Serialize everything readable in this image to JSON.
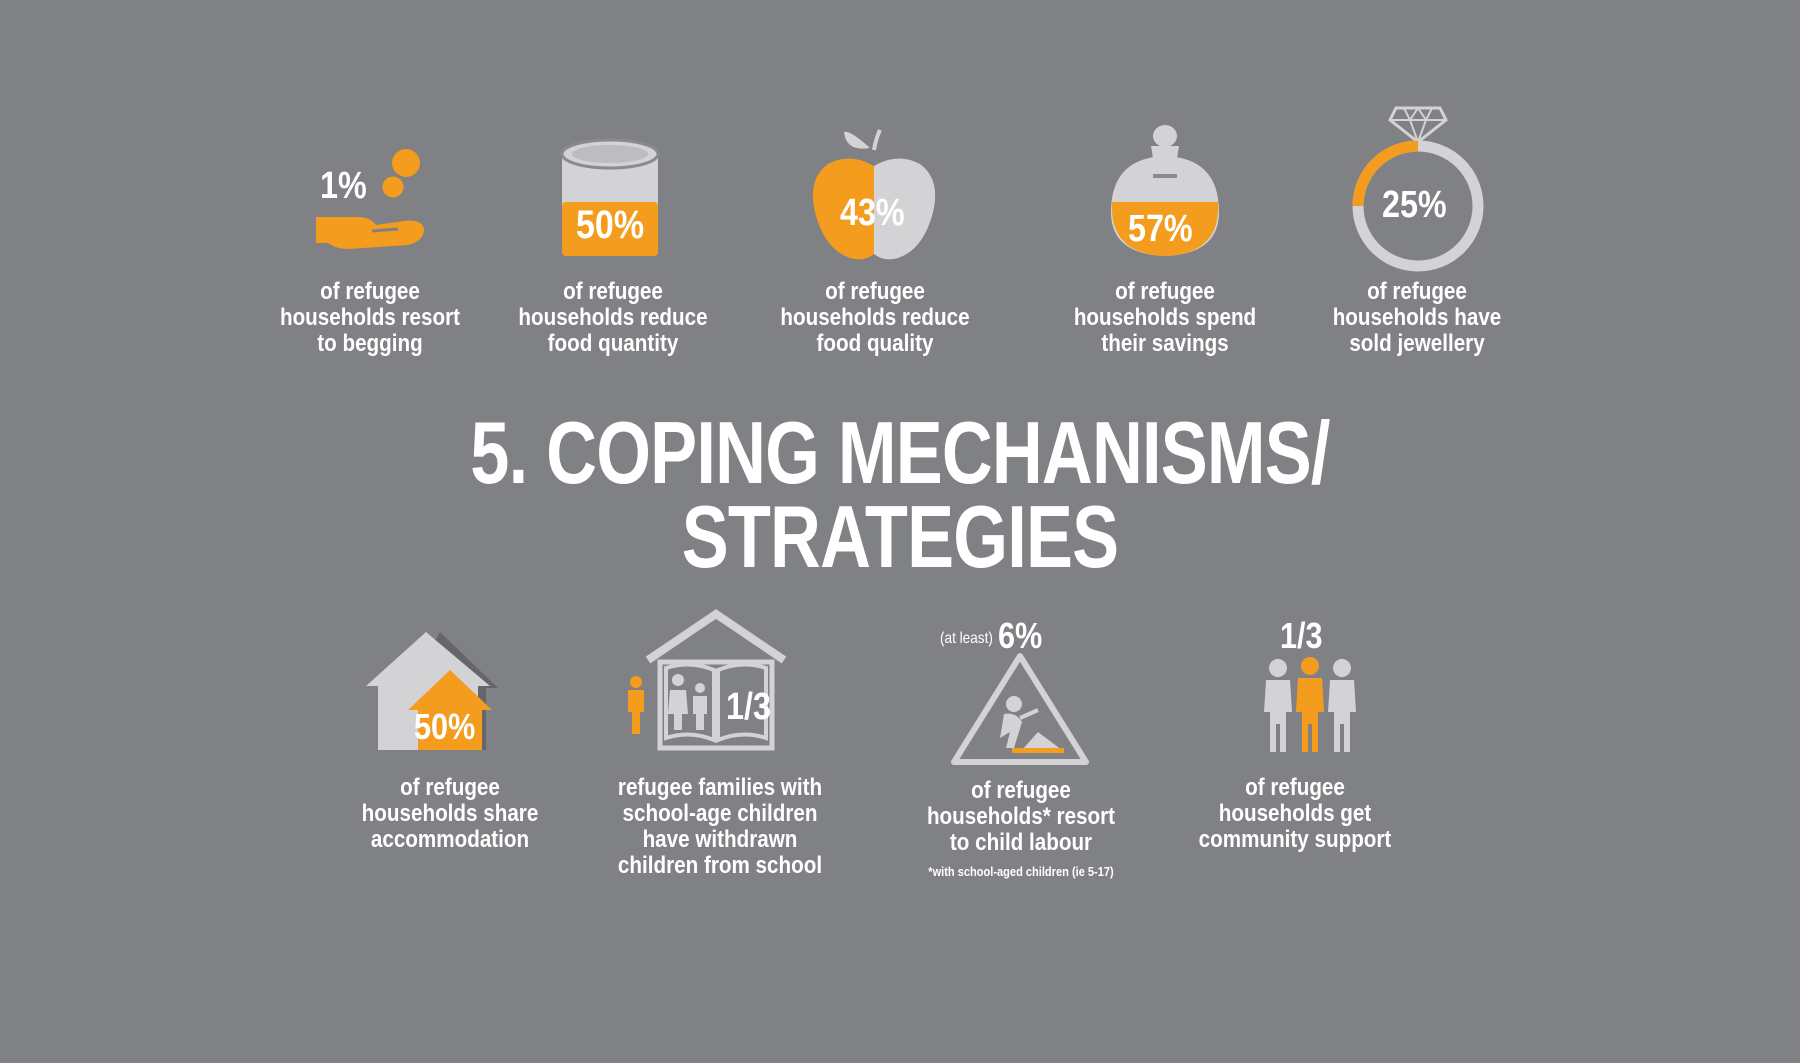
{
  "colors": {
    "background": "#808185",
    "accent": "#F39C1D",
    "light_grey": "#D3D3D5",
    "dark_grey": "#65666A",
    "text": "#FFFFFF"
  },
  "title": {
    "line1": "5. COPING MECHANISMS/",
    "line2": "STRATEGIES"
  },
  "top_items": [
    {
      "icon": "hand-coins-icon",
      "value": "1%",
      "lines": [
        "of refugee",
        "households resort",
        "to begging"
      ]
    },
    {
      "icon": "food-can-icon",
      "value": "50%",
      "lines": [
        "of refugee",
        "households reduce",
        "food quantity"
      ]
    },
    {
      "icon": "apple-icon",
      "value": "43%",
      "lines": [
        "of refugee",
        "households reduce",
        "food quality"
      ]
    },
    {
      "icon": "piggy-jar-icon",
      "value": "57%",
      "lines": [
        "of refugee",
        "households spend",
        "their savings"
      ]
    },
    {
      "icon": "diamond-ring-icon",
      "value": "25%",
      "lines": [
        "of refugee",
        "households have",
        "sold jewellery"
      ]
    }
  ],
  "bottom_items": [
    {
      "icon": "houses-icon",
      "value": "50%",
      "lines": [
        "of refugee",
        "households share",
        "accommodation"
      ]
    },
    {
      "icon": "school-book-icon",
      "value": "1/3",
      "lines": [
        "refugee families with",
        "school-age children",
        "have withdrawn",
        "children from school"
      ]
    },
    {
      "icon": "child-labour-sign-icon",
      "prefix": "(at least)",
      "value": "6%",
      "lines": [
        "of refugee",
        "households* resort",
        "to child labour"
      ],
      "footnote": "*with school-aged children (ie 5-17)"
    },
    {
      "icon": "people-group-icon",
      "value": "1/3",
      "lines": [
        "of refugee",
        "households get",
        "community support"
      ]
    }
  ]
}
